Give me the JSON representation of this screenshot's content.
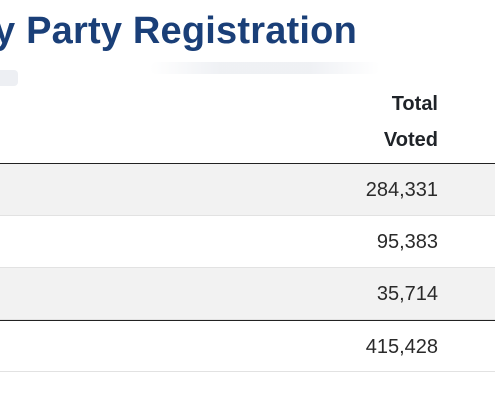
{
  "page": {
    "title": "y Party Registration"
  },
  "table": {
    "column_header_line1": "Total",
    "column_header_line2": "Voted",
    "rows": [
      {
        "total_voted": "284,331"
      },
      {
        "total_voted": "95,383"
      },
      {
        "total_voted": "35,714"
      }
    ],
    "total_row": {
      "total_voted": "415,428"
    }
  },
  "colors": {
    "title": "#1a3f78",
    "row_alt_bg": "#f2f2f2",
    "rule": "#222222"
  }
}
